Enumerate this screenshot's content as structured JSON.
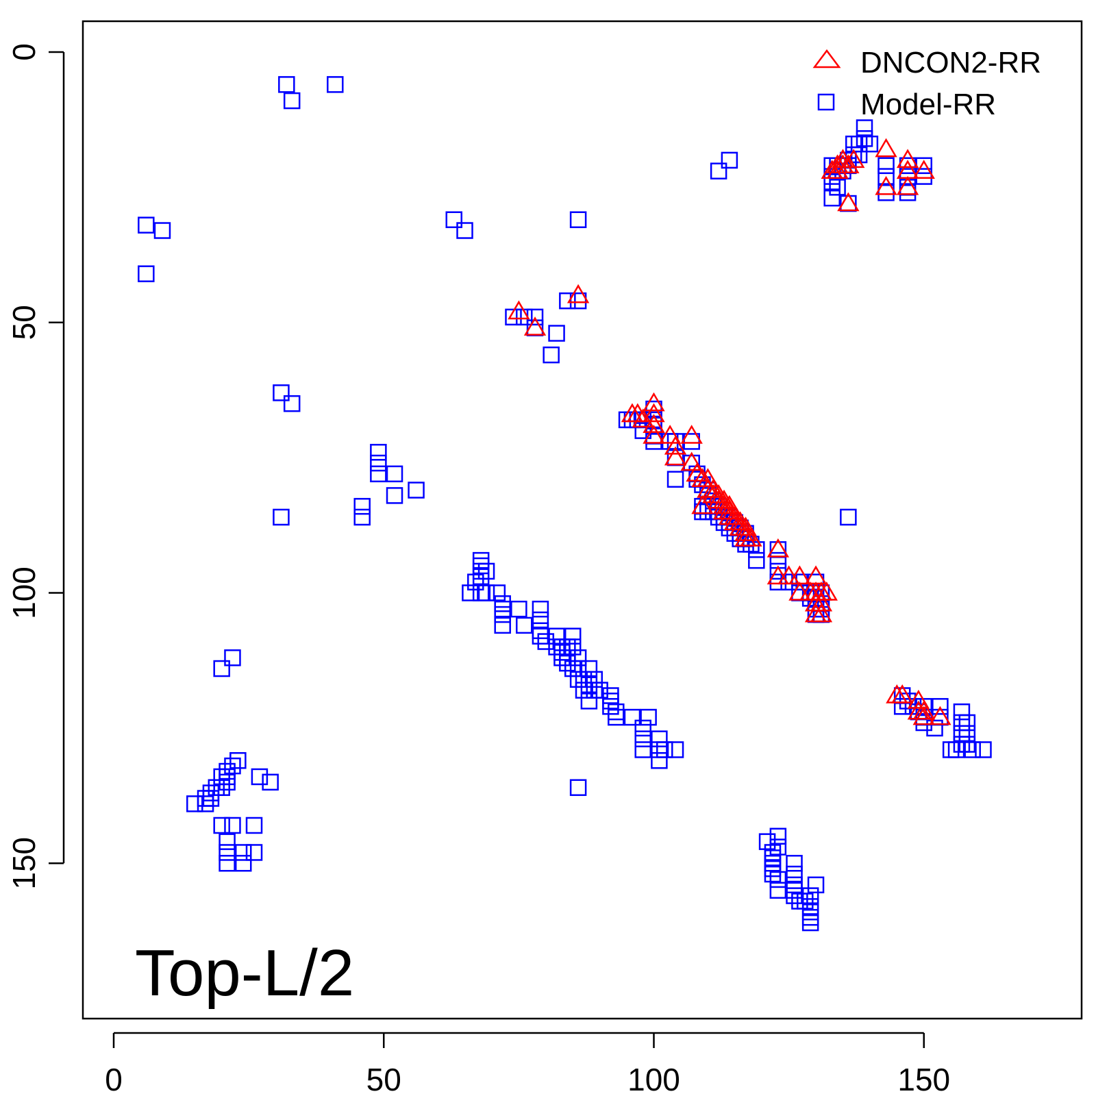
{
  "chart_data": {
    "type": "scatter",
    "title": "",
    "xlabel": "",
    "ylabel": "",
    "xlim": [
      -6,
      180
    ],
    "ylim": [
      0,
      180
    ],
    "y_reversed": true,
    "grid": false,
    "legend_position": "top-right",
    "annotation": "Top-L/2",
    "xticks": [
      "0",
      "50",
      "100",
      "150"
    ],
    "yticks": [
      "0",
      "50",
      "100",
      "150"
    ],
    "series": [
      {
        "name": "Model-RR",
        "marker": "square",
        "color": "#0000ff",
        "points": [
          [
            32,
            6
          ],
          [
            33,
            9
          ],
          [
            41,
            6
          ],
          [
            139,
            14
          ],
          [
            139,
            16
          ],
          [
            138,
            17
          ],
          [
            140,
            17
          ],
          [
            138,
            19
          ],
          [
            137,
            17
          ],
          [
            137,
            19
          ],
          [
            136,
            20
          ],
          [
            136,
            21
          ],
          [
            135,
            21
          ],
          [
            135,
            22
          ],
          [
            134,
            21
          ],
          [
            134,
            22
          ],
          [
            133,
            21
          ],
          [
            133,
            23
          ],
          [
            133,
            24
          ],
          [
            134,
            25
          ],
          [
            133,
            27
          ],
          [
            143,
            21
          ],
          [
            143,
            23
          ],
          [
            147,
            21
          ],
          [
            147,
            23
          ],
          [
            150,
            21
          ],
          [
            150,
            23
          ],
          [
            147,
            25
          ],
          [
            143,
            26
          ],
          [
            147,
            26
          ],
          [
            136,
            28
          ],
          [
            112,
            22
          ],
          [
            114,
            20
          ],
          [
            6,
            32
          ],
          [
            9,
            33
          ],
          [
            63,
            31
          ],
          [
            65,
            33
          ],
          [
            86,
            31
          ],
          [
            6,
            41
          ],
          [
            74,
            49
          ],
          [
            76,
            49
          ],
          [
            78,
            49
          ],
          [
            78,
            51
          ],
          [
            82,
            52
          ],
          [
            81,
            56
          ],
          [
            84,
            46
          ],
          [
            86,
            46
          ],
          [
            31,
            63
          ],
          [
            33,
            65
          ],
          [
            49,
            74
          ],
          [
            49,
            76
          ],
          [
            49,
            78
          ],
          [
            52,
            78
          ],
          [
            52,
            82
          ],
          [
            56,
            81
          ],
          [
            46,
            84
          ],
          [
            46,
            86
          ],
          [
            31,
            86
          ],
          [
            136,
            86
          ],
          [
            95,
            68
          ],
          [
            96,
            68
          ],
          [
            97,
            68
          ],
          [
            98,
            68
          ],
          [
            98,
            70
          ],
          [
            100,
            66
          ],
          [
            100,
            68
          ],
          [
            100,
            69
          ],
          [
            100,
            71
          ],
          [
            100,
            72
          ],
          [
            103,
            72
          ],
          [
            104,
            72
          ],
          [
            107,
            72
          ],
          [
            104,
            75
          ],
          [
            107,
            76
          ],
          [
            104,
            79
          ],
          [
            108,
            78
          ],
          [
            108,
            79
          ],
          [
            109,
            80
          ],
          [
            110,
            81
          ],
          [
            110,
            82
          ],
          [
            109,
            84
          ],
          [
            109,
            85
          ],
          [
            110,
            85
          ],
          [
            111,
            83
          ],
          [
            111,
            84
          ],
          [
            111,
            85
          ],
          [
            112,
            84
          ],
          [
            112,
            85
          ],
          [
            112,
            86
          ],
          [
            113,
            86
          ],
          [
            113,
            87
          ],
          [
            114,
            86
          ],
          [
            114,
            87
          ],
          [
            114,
            88
          ],
          [
            115,
            87
          ],
          [
            115,
            88
          ],
          [
            115,
            89
          ],
          [
            116,
            88
          ],
          [
            116,
            89
          ],
          [
            116,
            90
          ],
          [
            117,
            89
          ],
          [
            117,
            90
          ],
          [
            117,
            91
          ],
          [
            118,
            91
          ],
          [
            119,
            92
          ],
          [
            119,
            94
          ],
          [
            123,
            92
          ],
          [
            123,
            94
          ],
          [
            123,
            96
          ],
          [
            123,
            98
          ],
          [
            125,
            98
          ],
          [
            127,
            98
          ],
          [
            127,
            100
          ],
          [
            130,
            98
          ],
          [
            129,
            100
          ],
          [
            129,
            101
          ],
          [
            130,
            100
          ],
          [
            130,
            101
          ],
          [
            131,
            100
          ],
          [
            131,
            102
          ],
          [
            130,
            103
          ],
          [
            131,
            103
          ],
          [
            130,
            104
          ],
          [
            131,
            104
          ],
          [
            68,
            94
          ],
          [
            68,
            95
          ],
          [
            68,
            96
          ],
          [
            69,
            96
          ],
          [
            68,
            97
          ],
          [
            67,
            98
          ],
          [
            66,
            100
          ],
          [
            68,
            100
          ],
          [
            69,
            100
          ],
          [
            71,
            100
          ],
          [
            72,
            102
          ],
          [
            72,
            103
          ],
          [
            75,
            103
          ],
          [
            72,
            104
          ],
          [
            72,
            106
          ],
          [
            76,
            106
          ],
          [
            79,
            103
          ],
          [
            79,
            105
          ],
          [
            79,
            107
          ],
          [
            79,
            108
          ],
          [
            82,
            108
          ],
          [
            85,
            108
          ],
          [
            80,
            109
          ],
          [
            82,
            110
          ],
          [
            83,
            110
          ],
          [
            84,
            110
          ],
          [
            85,
            110
          ],
          [
            83,
            111
          ],
          [
            83,
            112
          ],
          [
            84,
            112
          ],
          [
            86,
            112
          ],
          [
            84,
            113
          ],
          [
            85,
            114
          ],
          [
            86,
            114
          ],
          [
            88,
            114
          ],
          [
            86,
            116
          ],
          [
            87,
            116
          ],
          [
            89,
            116
          ],
          [
            88,
            117
          ],
          [
            87,
            118
          ],
          [
            89,
            118
          ],
          [
            88,
            120
          ],
          [
            90,
            118
          ],
          [
            92,
            119
          ],
          [
            92,
            120
          ],
          [
            92,
            121
          ],
          [
            93,
            122
          ],
          [
            93,
            123
          ],
          [
            96,
            123
          ],
          [
            99,
            123
          ],
          [
            98,
            125
          ],
          [
            98,
            127
          ],
          [
            101,
            127
          ],
          [
            98,
            129
          ],
          [
            101,
            129
          ],
          [
            102,
            129
          ],
          [
            104,
            129
          ],
          [
            101,
            131
          ],
          [
            86,
            136
          ],
          [
            22,
            112
          ],
          [
            20,
            114
          ],
          [
            146,
            119
          ],
          [
            146,
            121
          ],
          [
            147,
            120
          ],
          [
            148,
            121
          ],
          [
            149,
            122
          ],
          [
            150,
            121
          ],
          [
            150,
            123
          ],
          [
            150,
            124
          ],
          [
            153,
            121
          ],
          [
            153,
            123
          ],
          [
            152,
            125
          ],
          [
            157,
            122
          ],
          [
            157,
            124
          ],
          [
            158,
            124
          ],
          [
            157,
            126
          ],
          [
            158,
            126
          ],
          [
            157,
            128
          ],
          [
            158,
            128
          ],
          [
            156,
            129
          ],
          [
            155,
            129
          ],
          [
            159,
            129
          ],
          [
            161,
            129
          ],
          [
            23,
            131
          ],
          [
            22,
            132
          ],
          [
            21,
            133
          ],
          [
            21,
            134
          ],
          [
            20,
            134
          ],
          [
            21,
            135
          ],
          [
            20,
            136
          ],
          [
            19,
            136
          ],
          [
            18,
            137
          ],
          [
            18,
            138
          ],
          [
            17,
            138
          ],
          [
            17,
            139
          ],
          [
            15,
            139
          ],
          [
            27,
            134
          ],
          [
            29,
            135
          ],
          [
            20,
            143
          ],
          [
            22,
            143
          ],
          [
            26,
            143
          ],
          [
            21,
            146
          ],
          [
            21,
            148
          ],
          [
            21,
            150
          ],
          [
            24,
            148
          ],
          [
            26,
            148
          ],
          [
            24,
            150
          ],
          [
            121,
            146
          ],
          [
            123,
            145
          ],
          [
            123,
            147
          ],
          [
            122,
            148
          ],
          [
            122,
            149
          ],
          [
            122,
            150
          ],
          [
            122,
            151
          ],
          [
            122,
            152
          ],
          [
            123,
            153
          ],
          [
            126,
            150
          ],
          [
            126,
            152
          ],
          [
            126,
            154
          ],
          [
            123,
            155
          ],
          [
            126,
            155
          ],
          [
            130,
            154
          ],
          [
            126,
            156
          ],
          [
            127,
            157
          ],
          [
            128,
            157
          ],
          [
            129,
            156
          ],
          [
            129,
            158
          ],
          [
            129,
            159
          ],
          [
            129,
            160
          ],
          [
            129,
            161
          ]
        ]
      },
      {
        "name": "DNCON2-RR",
        "marker": "triangle",
        "color": "#ff0000",
        "points": [
          [
            133,
            22
          ],
          [
            134,
            21
          ],
          [
            134,
            22
          ],
          [
            135,
            20
          ],
          [
            135,
            21
          ],
          [
            136,
            21
          ],
          [
            137,
            20
          ],
          [
            143,
            18
          ],
          [
            147,
            20
          ],
          [
            147,
            22
          ],
          [
            150,
            22
          ],
          [
            147,
            25
          ],
          [
            143,
            25
          ],
          [
            136,
            28
          ],
          [
            75,
            48
          ],
          [
            78,
            51
          ],
          [
            86,
            45
          ],
          [
            96,
            67
          ],
          [
            97,
            67
          ],
          [
            98,
            68
          ],
          [
            100,
            65
          ],
          [
            100,
            67
          ],
          [
            100,
            69
          ],
          [
            100,
            71
          ],
          [
            103,
            71
          ],
          [
            104,
            73
          ],
          [
            107,
            71
          ],
          [
            104,
            75
          ],
          [
            107,
            76
          ],
          [
            108,
            78
          ],
          [
            109,
            79
          ],
          [
            110,
            79
          ],
          [
            110,
            81
          ],
          [
            111,
            81
          ],
          [
            111,
            82
          ],
          [
            112,
            82
          ],
          [
            112,
            83
          ],
          [
            113,
            83
          ],
          [
            113,
            84
          ],
          [
            113,
            85
          ],
          [
            114,
            84
          ],
          [
            114,
            85
          ],
          [
            114,
            86
          ],
          [
            115,
            86
          ],
          [
            115,
            87
          ],
          [
            116,
            87
          ],
          [
            116,
            88
          ],
          [
            117,
            88
          ],
          [
            117,
            89
          ],
          [
            117,
            90
          ],
          [
            118,
            90
          ],
          [
            109,
            84
          ],
          [
            123,
            92
          ],
          [
            123,
            97
          ],
          [
            125,
            97
          ],
          [
            127,
            97
          ],
          [
            127,
            100
          ],
          [
            130,
            97
          ],
          [
            129,
            100
          ],
          [
            130,
            100
          ],
          [
            131,
            100
          ],
          [
            130,
            102
          ],
          [
            131,
            102
          ],
          [
            130,
            104
          ],
          [
            131,
            104
          ],
          [
            132,
            100
          ],
          [
            145,
            119
          ],
          [
            146,
            119
          ],
          [
            149,
            120
          ],
          [
            149,
            122
          ],
          [
            150,
            122
          ],
          [
            150,
            123
          ],
          [
            153,
            123
          ]
        ]
      }
    ]
  }
}
